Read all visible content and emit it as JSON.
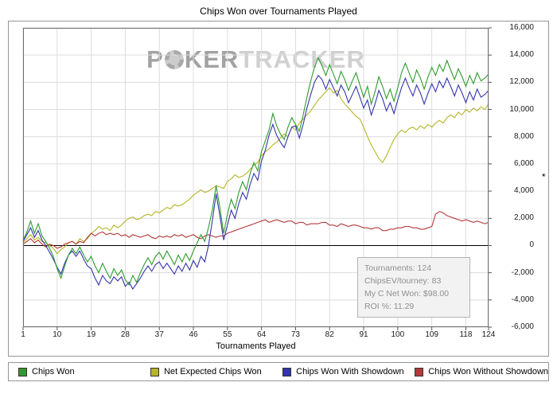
{
  "chart_data": {
    "type": "line",
    "title": "Chips Won over Tournaments Played",
    "xlabel": "Tournaments Played",
    "ylabel": "*",
    "xlim": [
      1,
      124
    ],
    "ylim": [
      -6000,
      16000
    ],
    "grid": true,
    "legend_position": "bottom",
    "x_ticks": [
      1,
      10,
      19,
      28,
      37,
      46,
      55,
      64,
      73,
      82,
      91,
      100,
      109,
      118,
      124
    ],
    "x_tick_labels": [
      "1",
      "10",
      "19",
      "28",
      "37",
      "46",
      "55",
      "64",
      "73",
      "82",
      "91",
      "100",
      "109",
      "118",
      "124"
    ],
    "y_ticks": [
      16000,
      14000,
      12000,
      10000,
      8000,
      6000,
      4000,
      2000,
      0,
      -2000,
      -4000,
      -6000
    ],
    "y_tick_labels": [
      "16,000",
      "14,000",
      "12,000",
      "10,000",
      "8,000",
      "6,000",
      "4,000",
      "2,000",
      "0",
      "-2,000",
      "-4,000",
      "-6,000"
    ],
    "draw_order": [
      1,
      3,
      2,
      0
    ],
    "series": [
      {
        "name": "Chips Won",
        "color": "#2E9B2E",
        "values": [
          400,
          1000,
          1800,
          900,
          1600,
          700,
          300,
          -200,
          -800,
          -1700,
          -2400,
          -1500,
          -700,
          -200,
          -600,
          -100,
          -700,
          -1200,
          -800,
          -1500,
          -2000,
          -1300,
          -1900,
          -2400,
          -1700,
          -2200,
          -1800,
          -2500,
          -2900,
          -2200,
          -2700,
          -2000,
          -1400,
          -900,
          -1400,
          -800,
          -500,
          -1000,
          -400,
          -900,
          -1400,
          -700,
          -1200,
          -600,
          -1100,
          -400,
          200,
          800,
          300,
          1300,
          2600,
          4400,
          2800,
          900,
          2300,
          3400,
          2700,
          3900,
          4700,
          4100,
          5300,
          6100,
          5500,
          6900,
          7700,
          8500,
          9700,
          8800,
          8200,
          7800,
          8700,
          9400,
          8900,
          8400,
          9600,
          10900,
          12100,
          13100,
          13800,
          13200,
          12500,
          13300,
          12600,
          11900,
          12800,
          12200,
          11400,
          12100,
          12700,
          11800,
          10900,
          11700,
          10400,
          11300,
          12400,
          11700,
          10800,
          11500,
          10600,
          11600,
          12700,
          13400,
          12700,
          12000,
          12900,
          12300,
          11500,
          12400,
          13100,
          12500,
          13300,
          12800,
          13600,
          12900,
          12200,
          13000,
          12400,
          11700,
          12500,
          11900,
          12700,
          12100,
          12300,
          12600
        ]
      },
      {
        "name": "Net Expected Chips Won",
        "color": "#B5B52A",
        "values": [
          200,
          500,
          800,
          400,
          600,
          300,
          200,
          0,
          -200,
          -600,
          -300,
          -100,
          200,
          300,
          100,
          500,
          300,
          500,
          900,
          1100,
          1400,
          1200,
          1300,
          1100,
          1500,
          1300,
          1500,
          1800,
          2000,
          2100,
          1900,
          2000,
          2200,
          2300,
          2200,
          2500,
          2400,
          2600,
          2800,
          2700,
          3000,
          2900,
          3000,
          3200,
          3400,
          3700,
          3900,
          4100,
          3900,
          4000,
          4200,
          4400,
          4300,
          4200,
          4700,
          4900,
          5200,
          5000,
          5100,
          5300,
          5600,
          5900,
          6100,
          6600,
          6900,
          7100,
          7400,
          7600,
          7900,
          8200,
          8000,
          8700,
          8500,
          9000,
          9300,
          9600,
          9900,
          10300,
          10700,
          11000,
          11300,
          11600,
          11200,
          11400,
          10800,
          10400,
          10100,
          9800,
          9500,
          9300,
          8700,
          8000,
          7400,
          6900,
          6400,
          6100,
          6600,
          7200,
          7800,
          8200,
          8500,
          8300,
          8600,
          8700,
          8500,
          8800,
          8600,
          8900,
          8700,
          9000,
          9200,
          9000,
          9400,
          9600,
          9400,
          9800,
          9600,
          10000,
          9800,
          10100,
          9900,
          10200,
          10000,
          10400
        ]
      },
      {
        "name": "Chips Won With Showdown",
        "color": "#3434AD",
        "values": [
          300,
          800,
          1300,
          600,
          1100,
          400,
          0,
          -500,
          -1000,
          -1600,
          -2100,
          -1300,
          -700,
          -400,
          -800,
          -400,
          -1000,
          -1500,
          -1700,
          -2400,
          -2900,
          -2200,
          -2600,
          -2800,
          -2300,
          -2600,
          -2300,
          -3000,
          -2700,
          -3200,
          -2800,
          -2400,
          -1900,
          -1500,
          -1900,
          -1400,
          -1200,
          -1700,
          -1300,
          -1700,
          -2100,
          -1500,
          -1900,
          -1300,
          -1800,
          -1100,
          -1600,
          -800,
          -1200,
          0,
          1800,
          3800,
          2200,
          400,
          1500,
          2600,
          2000,
          3100,
          3900,
          3400,
          4500,
          5300,
          4800,
          6200,
          7000,
          8100,
          8900,
          8100,
          7600,
          7200,
          8000,
          8700,
          8800,
          7900,
          8900,
          10100,
          11100,
          12000,
          12500,
          12200,
          11500,
          12200,
          11600,
          11000,
          11800,
          11300,
          10500,
          11100,
          11700,
          10900,
          10100,
          10700,
          9600,
          10400,
          11400,
          10800,
          9900,
          10500,
          9700,
          10700,
          11600,
          12300,
          11600,
          11000,
          11800,
          11200,
          10400,
          11200,
          11900,
          11300,
          12100,
          11600,
          12300,
          11700,
          11000,
          11800,
          11200,
          10500,
          11300,
          10700,
          11500,
          10900,
          11100,
          11400
        ]
      },
      {
        "name": "Chips Won Without Showdown",
        "color": "#B33A3A",
        "values": [
          100,
          300,
          500,
          200,
          400,
          100,
          -100,
          100,
          0,
          -200,
          -100,
          100,
          200,
          300,
          100,
          300,
          200,
          600,
          900,
          700,
          900,
          1000,
          800,
          900,
          800,
          900,
          700,
          800,
          600,
          800,
          700,
          600,
          700,
          800,
          600,
          500,
          700,
          600,
          700,
          600,
          800,
          700,
          800,
          600,
          700,
          800,
          600,
          500,
          700,
          800,
          700,
          600,
          700,
          700,
          900,
          1000,
          1100,
          1200,
          1300,
          1400,
          1500,
          1600,
          1700,
          1800,
          1900,
          1700,
          1800,
          1900,
          1800,
          1700,
          1800,
          1800,
          1600,
          1700,
          1700,
          1500,
          1600,
          1600,
          1600,
          1700,
          1700,
          1500,
          1500,
          1400,
          1600,
          1500,
          1400,
          1500,
          1500,
          1400,
          1300,
          1300,
          1200,
          1300,
          1300,
          1100,
          1100,
          1200,
          1200,
          1300,
          1300,
          1400,
          1400,
          1300,
          1300,
          1200,
          1200,
          1300,
          1400,
          2300,
          2500,
          2400,
          2200,
          2100,
          2000,
          1900,
          1800,
          1900,
          1800,
          1700,
          1800,
          1700,
          1600,
          1700
        ]
      }
    ]
  },
  "watermark": {
    "brand_bold_1": "P",
    "brand_bold_2": "KER",
    "brand_light": "TRACKER"
  },
  "icons": {
    "poker_chip_icon": "dashed-circle"
  },
  "tooltip": {
    "lines": [
      "Tournaments: 124",
      "ChipsEV/tourney: 83",
      "My C Net Won: $98.00",
      "ROI %: 11.29"
    ]
  }
}
